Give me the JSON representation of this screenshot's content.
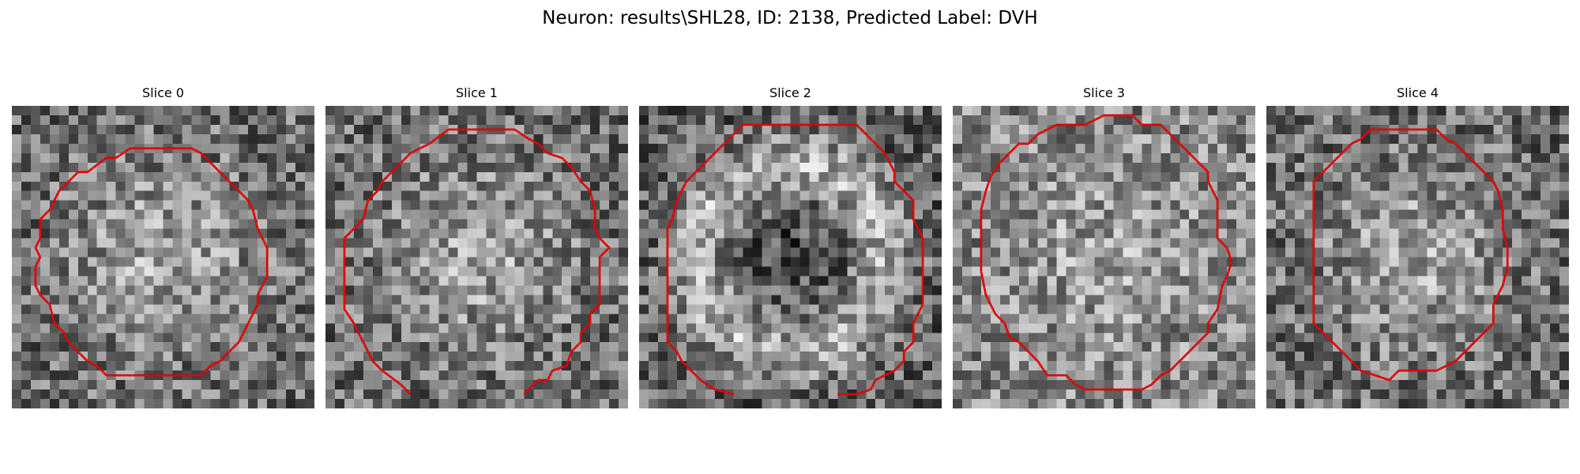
{
  "figure": {
    "title": "Neuron: results\\SHL28, ID: 2138, Predicted Label: DVH"
  },
  "contour_color": "#e00000",
  "colormap": "gray",
  "slices": [
    {
      "title": "Slice 0",
      "seed": 11,
      "pattern": "blob"
    },
    {
      "title": "Slice 1",
      "seed": 23,
      "pattern": "blob"
    },
    {
      "title": "Slice 2",
      "seed": 37,
      "pattern": "ring"
    },
    {
      "title": "Slice 3",
      "seed": 41,
      "pattern": "soft"
    },
    {
      "title": "Slice 4",
      "seed": 59,
      "pattern": "blob"
    }
  ]
}
